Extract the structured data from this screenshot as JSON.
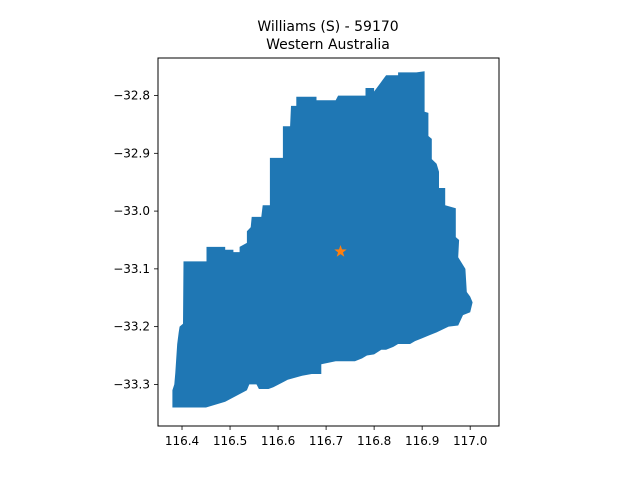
{
  "chart_data": {
    "type": "map",
    "title": "Williams (S) - 59170",
    "subtitle": "Western Australia",
    "xlim": [
      116.35,
      117.06
    ],
    "ylim": [
      -33.372,
      -32.735
    ],
    "x_ticks": [
      116.4,
      116.5,
      116.6,
      116.7,
      116.8,
      116.9,
      117.0
    ],
    "x_tick_labels": [
      "116.4",
      "116.5",
      "116.6",
      "116.7",
      "116.8",
      "116.9",
      "117.0"
    ],
    "y_ticks": [
      -33.3,
      -33.2,
      -33.1,
      -33.0,
      -32.9,
      -32.8
    ],
    "y_tick_labels": [
      "−33.3",
      "−33.2",
      "−33.1",
      "−33.0",
      "−32.9",
      "−32.8"
    ],
    "grid": false,
    "region_color": "#1f77b4",
    "marker": {
      "name": "centroid",
      "symbol": "star-icon",
      "color": "#ff7f0e",
      "lon": 116.73,
      "lat": -33.07
    },
    "boundary": [
      [
        116.38,
        -33.34
      ],
      [
        116.38,
        -33.31
      ],
      [
        116.384,
        -33.3
      ],
      [
        116.386,
        -33.28
      ],
      [
        116.39,
        -33.23
      ],
      [
        116.393,
        -33.21
      ],
      [
        116.395,
        -33.2
      ],
      [
        116.402,
        -33.195
      ],
      [
        116.403,
        -33.087
      ],
      [
        116.451,
        -33.087
      ],
      [
        116.451,
        -33.062
      ],
      [
        116.49,
        -33.062
      ],
      [
        116.49,
        -33.067
      ],
      [
        116.507,
        -33.067
      ],
      [
        116.507,
        -33.071
      ],
      [
        116.52,
        -33.071
      ],
      [
        116.52,
        -33.062
      ],
      [
        116.535,
        -33.055
      ],
      [
        116.535,
        -33.035
      ],
      [
        116.543,
        -33.028
      ],
      [
        116.545,
        -33.01
      ],
      [
        116.565,
        -33.01
      ],
      [
        116.568,
        -32.99
      ],
      [
        116.583,
        -32.99
      ],
      [
        116.583,
        -32.908
      ],
      [
        116.61,
        -32.908
      ],
      [
        116.61,
        -32.853
      ],
      [
        116.625,
        -32.853
      ],
      [
        116.627,
        -32.818
      ],
      [
        116.638,
        -32.818
      ],
      [
        116.638,
        -32.802
      ],
      [
        116.68,
        -32.802
      ],
      [
        116.68,
        -32.808
      ],
      [
        116.72,
        -32.808
      ],
      [
        116.725,
        -32.8
      ],
      [
        116.782,
        -32.8
      ],
      [
        116.782,
        -32.787
      ],
      [
        116.8,
        -32.787
      ],
      [
        116.8,
        -32.793
      ],
      [
        116.825,
        -32.765
      ],
      [
        116.85,
        -32.765
      ],
      [
        116.85,
        -32.76
      ],
      [
        116.888,
        -32.76
      ],
      [
        116.905,
        -32.758
      ],
      [
        116.905,
        -32.81
      ],
      [
        116.905,
        -32.828
      ],
      [
        116.913,
        -32.83
      ],
      [
        116.913,
        -32.87
      ],
      [
        116.92,
        -32.875
      ],
      [
        116.92,
        -32.91
      ],
      [
        116.93,
        -32.918
      ],
      [
        116.935,
        -32.932
      ],
      [
        116.935,
        -32.96
      ],
      [
        116.948,
        -32.96
      ],
      [
        116.948,
        -32.99
      ],
      [
        116.97,
        -32.995
      ],
      [
        116.97,
        -33.02
      ],
      [
        116.97,
        -33.045
      ],
      [
        116.977,
        -33.05
      ],
      [
        116.975,
        -33.08
      ],
      [
        116.99,
        -33.1
      ],
      [
        116.993,
        -33.14
      ],
      [
        117.0,
        -33.148
      ],
      [
        117.005,
        -33.158
      ],
      [
        117.0,
        -33.175
      ],
      [
        116.985,
        -33.18
      ],
      [
        116.975,
        -33.198
      ],
      [
        116.955,
        -33.2
      ],
      [
        116.93,
        -33.21
      ],
      [
        116.915,
        -33.215
      ],
      [
        116.9,
        -33.22
      ],
      [
        116.885,
        -33.225
      ],
      [
        116.875,
        -33.23
      ],
      [
        116.85,
        -33.23
      ],
      [
        116.84,
        -33.235
      ],
      [
        116.825,
        -33.24
      ],
      [
        116.815,
        -33.24
      ],
      [
        116.8,
        -33.248
      ],
      [
        116.785,
        -33.25
      ],
      [
        116.775,
        -33.255
      ],
      [
        116.76,
        -33.26
      ],
      [
        116.72,
        -33.26
      ],
      [
        116.69,
        -33.265
      ],
      [
        116.69,
        -33.282
      ],
      [
        116.67,
        -33.282
      ],
      [
        116.65,
        -33.285
      ],
      [
        116.62,
        -33.292
      ],
      [
        116.59,
        -33.305
      ],
      [
        116.58,
        -33.308
      ],
      [
        116.56,
        -33.308
      ],
      [
        116.555,
        -33.3
      ],
      [
        116.54,
        -33.3
      ],
      [
        116.535,
        -33.31
      ],
      [
        116.49,
        -33.33
      ],
      [
        116.45,
        -33.34
      ]
    ]
  }
}
